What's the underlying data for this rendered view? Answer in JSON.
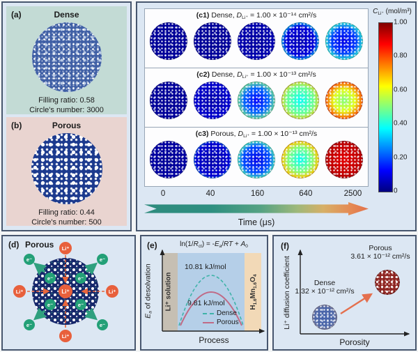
{
  "panel_a": {
    "tag": "(a)",
    "title": "Dense",
    "filling": "Filling ratio: 0.58",
    "count": "Circle's number: 3000"
  },
  "panel_b": {
    "tag": "(b)",
    "title": "Porous",
    "filling": "Filling ratio: 0.44",
    "count": "Circle's number: 500"
  },
  "panel_c": {
    "rows": [
      {
        "tag": "(c1)",
        "material": " Dense, ",
        "dsym": "D",
        "dsub": "Li⁺",
        "value": " = 1.00 × 10⁻¹⁴ cm²/s"
      },
      {
        "tag": "(c2)",
        "material": " Dense, ",
        "dsym": "D",
        "dsub": "Li⁺",
        "value": " = 1.00 × 10⁻¹³ cm²/s"
      },
      {
        "tag": "(c3)",
        "material": " Porous, ",
        "dsym": "D",
        "dsub": "Li⁺",
        "value": " = 1.00 × 10⁻¹³ cm²/s"
      }
    ],
    "colorbar": {
      "sym": "C",
      "sub": "Li⁺",
      "unit": " (mol/m³)",
      "ticks": [
        "1.00",
        "0.80",
        "0.60",
        "0.40",
        "0.20",
        "0"
      ]
    },
    "time": {
      "ticks": [
        "0",
        "40",
        "160",
        "640",
        "2500"
      ],
      "label": "Time (μs)"
    }
  },
  "panel_d": {
    "tag": "(d)",
    "title": "Porous",
    "ion": "Li⁺",
    "electron": "e⁻"
  },
  "panel_e": {
    "tag": "(e)",
    "eq": {
      "p1": "ln(1/",
      "rsym": "R",
      "rsub": "ct",
      "p2": ") = -",
      "esym": "E",
      "esub": "a",
      "slash": "/",
      "rt": "RT",
      "plus": " + ",
      "asym": "A",
      "asub": "0"
    },
    "ylabel": {
      "sym": "E",
      "sub": "a",
      "rest": " of desolvation"
    },
    "xlabel": "Process",
    "band_left": "Li⁺ solution",
    "band_right": {
      "h": "H",
      "hsub": "1.6",
      "mn": "Mn",
      "mnsub": "1.6",
      "o": "O",
      "osub": "4"
    },
    "peak_dense": "10.81 kJ/mol",
    "peak_porous": "9.81 kJ/mol",
    "legend_dense": "Dense",
    "legend_porous": "Porous"
  },
  "panel_f": {
    "tag": "(f)",
    "ylabel": "Li⁺ diffusion coefficient",
    "xlabel": "Porosity",
    "dense_label": "Dense",
    "dense_value": "1.32 × 10⁻¹² cm²/s",
    "porous_label": "Porous",
    "porous_value": "3.61 × 10⁻¹² cm²/s"
  },
  "colors": {
    "panel_bg": "#dce7f3",
    "panel_border": "#47566e",
    "section_a_bg": "#c3dbd5",
    "section_b_bg": "#e9d4d0",
    "ion_orange": "#e8603c",
    "electron_green": "#23a077",
    "dense_curve_teal": "#3fb3a9",
    "porous_curve_mauve": "#c06a86",
    "arrow_teal": "#2e8b7d",
    "arrow_orange": "#e2714a"
  },
  "chart_data": [
    {
      "id": "c",
      "type": "heatmap",
      "description": "Simulated Li+ concentration maps in particle cross-sections over time",
      "x_time_us": [
        0,
        40,
        160,
        640,
        2500
      ],
      "xlabel": "Time (μs)",
      "colorbar": {
        "label": "C_Li+ (mol/m³)",
        "min": 0,
        "max": 1,
        "ticks": [
          1.0,
          0.8,
          0.6,
          0.4,
          0.2,
          0
        ],
        "colormap": "jet"
      },
      "rows": [
        {
          "name": "Dense",
          "D_cm2_s": "1.00e-14",
          "profiles": [
            [
              [
                0,
                0.02
              ],
              [
                1,
                0.03
              ]
            ],
            [
              [
                0,
                0.02
              ],
              [
                0.88,
                0.03
              ],
              [
                1,
                0.45
              ]
            ],
            [
              [
                0,
                0.03
              ],
              [
                0.82,
                0.05
              ],
              [
                0.96,
                0.55
              ],
              [
                1,
                0.9
              ]
            ],
            [
              [
                0,
                0.05
              ],
              [
                0.55,
                0.09
              ],
              [
                0.8,
                0.38
              ],
              [
                0.95,
                0.75
              ],
              [
                1,
                1
              ]
            ],
            [
              [
                0,
                0.1
              ],
              [
                0.45,
                0.18
              ],
              [
                0.75,
                0.42
              ],
              [
                0.93,
                0.75
              ],
              [
                1,
                1
              ]
            ]
          ]
        },
        {
          "name": "Dense",
          "D_cm2_s": "1.00e-13",
          "profiles": [
            [
              [
                0,
                0.02
              ],
              [
                1,
                0.03
              ]
            ],
            [
              [
                0,
                0.04
              ],
              [
                0.7,
                0.08
              ],
              [
                0.92,
                0.45
              ],
              [
                1,
                0.9
              ]
            ],
            [
              [
                0,
                0.12
              ],
              [
                0.45,
                0.22
              ],
              [
                0.78,
                0.5
              ],
              [
                0.95,
                0.85
              ],
              [
                1,
                1
              ]
            ],
            [
              [
                0,
                0.38
              ],
              [
                0.5,
                0.48
              ],
              [
                0.8,
                0.68
              ],
              [
                1,
                1
              ]
            ],
            [
              [
                0,
                0.5
              ],
              [
                0.4,
                0.6
              ],
              [
                0.75,
                0.82
              ],
              [
                1,
                1
              ]
            ]
          ]
        },
        {
          "name": "Porous",
          "D_cm2_s": "1.00e-13",
          "profiles": [
            [
              [
                0,
                0.02
              ],
              [
                1,
                0.04
              ]
            ],
            [
              [
                0,
                0.04
              ],
              [
                0.62,
                0.08
              ],
              [
                0.82,
                0.3
              ],
              [
                0.93,
                0.7
              ],
              [
                1,
                1
              ]
            ],
            [
              [
                0,
                0.1
              ],
              [
                0.5,
                0.2
              ],
              [
                0.75,
                0.45
              ],
              [
                0.9,
                0.8
              ],
              [
                1,
                1
              ]
            ],
            [
              [
                0,
                0.38
              ],
              [
                0.45,
                0.5
              ],
              [
                0.7,
                0.68
              ],
              [
                0.88,
                0.9
              ],
              [
                1,
                1
              ]
            ],
            [
              [
                0,
                0.9
              ],
              [
                0.6,
                0.94
              ],
              [
                1,
                1
              ]
            ]
          ]
        }
      ]
    },
    {
      "id": "e",
      "type": "line",
      "title": "ln(1/Rct) = -Ea/RT + A0",
      "xlabel": "Process",
      "ylabel": "Ea of desolvation",
      "regions": [
        "Li+ solution",
        "H1.6Mn1.6O4"
      ],
      "series": [
        {
          "name": "Dense",
          "style": "dashed",
          "peak_kJ_per_mol": 10.81
        },
        {
          "name": "Porous",
          "style": "solid",
          "peak_kJ_per_mol": 9.81
        }
      ],
      "legend_position": "bottom-center"
    },
    {
      "id": "f",
      "type": "scatter",
      "xlabel": "Porosity",
      "ylabel": "Li+ diffusion coefficient",
      "points": [
        {
          "name": "Dense",
          "diffusion_cm2_s": 1.32e-12,
          "porosity_rank": 1
        },
        {
          "name": "Porous",
          "diffusion_cm2_s": 3.61e-12,
          "porosity_rank": 2
        }
      ],
      "annotation": "arrow from Dense to Porous indicating increase"
    }
  ]
}
